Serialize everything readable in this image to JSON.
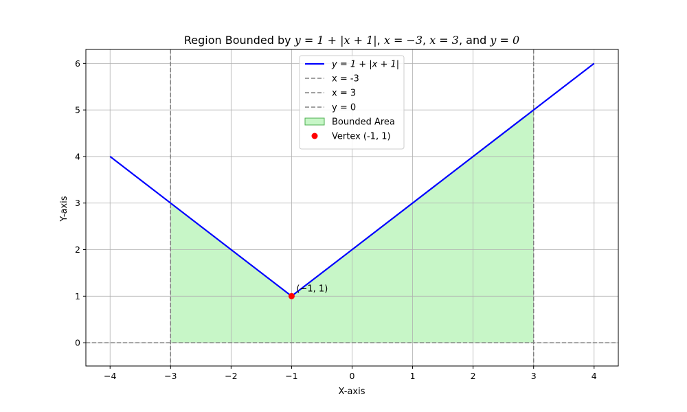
{
  "chart_data": {
    "type": "line",
    "title": {
      "prefix": "Region Bounded by ",
      "fn": "y = 1 + |x + 1|",
      "s1": ", ",
      "b1": "x = −3",
      "s2": ", ",
      "b2": "x = 3",
      "s3": ", and ",
      "b3": "y = 0"
    },
    "xlabel": "X-axis",
    "ylabel": "Y-axis",
    "xlim": [
      -4.4,
      4.4
    ],
    "ylim": [
      -0.5,
      6.3
    ],
    "xticks": [
      -4,
      -3,
      -2,
      -1,
      0,
      1,
      2,
      3,
      4
    ],
    "xtick_labels": [
      "−4",
      "−3",
      "−2",
      "−1",
      "0",
      "1",
      "2",
      "3",
      "4"
    ],
    "yticks": [
      0,
      1,
      2,
      3,
      4,
      5,
      6
    ],
    "ytick_labels": [
      "0",
      "1",
      "2",
      "3",
      "4",
      "5",
      "6"
    ],
    "grid": true,
    "legend_position": "top-center",
    "series": [
      {
        "name": "y = 1 + |x + 1|",
        "kind": "line",
        "color": "#0000ff",
        "x": [
          -4,
          -1,
          4
        ],
        "y": [
          4,
          1,
          6
        ]
      }
    ],
    "reference_lines": [
      {
        "name": "x = -3",
        "orientation": "vertical",
        "value": -3,
        "color": "#808080"
      },
      {
        "name": "x = 3",
        "orientation": "vertical",
        "value": 3,
        "color": "#808080"
      },
      {
        "name": "y = 0",
        "orientation": "horizontal",
        "value": 0,
        "color": "#808080"
      }
    ],
    "area": {
      "name": "Bounded Area",
      "color": "#90ee90",
      "x": [
        -3,
        -1,
        3
      ],
      "y_upper": [
        3,
        1,
        5
      ],
      "y_lower": 0
    },
    "points": [
      {
        "name": "Vertex (-1, 1)",
        "x": -1,
        "y": 1,
        "color": "#ff0000"
      }
    ],
    "annotations": [
      {
        "text": "(−1, 1)",
        "x": -1,
        "y": 1
      }
    ]
  }
}
